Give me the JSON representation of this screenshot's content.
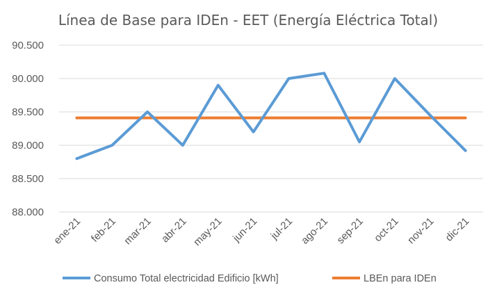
{
  "chart_data": {
    "type": "line",
    "title": "Línea de Base para IDEn - EET (Energía Eléctrica Total)",
    "xlabel": "",
    "ylabel": "",
    "categories": [
      "ene-21",
      "feb-21",
      "mar-21",
      "abr-21",
      "may-21",
      "jun-21",
      "jul-21",
      "ago-21",
      "sep-21",
      "oct-21",
      "nov-21",
      "dic-21"
    ],
    "yticks": [
      88000,
      88500,
      89000,
      89500,
      90000,
      90500
    ],
    "ytick_labels": [
      "88.000",
      "88.500",
      "89.000",
      "89.500",
      "90.000",
      "90.500"
    ],
    "ylim": [
      88000,
      90500
    ],
    "grid": true,
    "legend_position": "bottom",
    "series": [
      {
        "name": "Consumo Total electricidad Edificio [kWh]",
        "color": "#5b9bd5",
        "values": [
          88800,
          89000,
          89500,
          89000,
          89900,
          89200,
          90000,
          90080,
          89050,
          90000,
          89450,
          88920
        ]
      },
      {
        "name": "LBEn para IDEn",
        "color": "#ed7d31",
        "values": [
          89410,
          89410,
          89410,
          89410,
          89410,
          89410,
          89410,
          89410,
          89410,
          89410,
          89410,
          89410
        ]
      }
    ]
  }
}
